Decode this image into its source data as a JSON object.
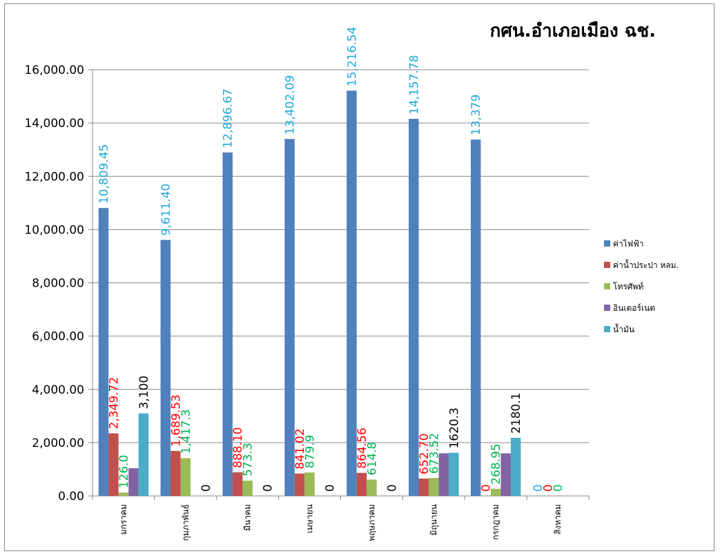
{
  "chart_data": {
    "type": "bar",
    "title": "กศน.อำเภอเมือง ฉช.",
    "xlabel": "",
    "ylabel": "",
    "ylim": [
      0,
      16000
    ],
    "yticks": [
      0,
      2000,
      4000,
      6000,
      8000,
      10000,
      12000,
      14000,
      16000
    ],
    "ytick_labels": [
      "0.00",
      "2,000.00",
      "4,000.00",
      "6,000.00",
      "8,000.00",
      "10,000.00",
      "12,000.00",
      "14,000.00",
      "16,000.00"
    ],
    "grid": true,
    "legend_position": "right",
    "categories": [
      "มกราคม",
      "กุมภาพันธ์",
      "มีนาคม",
      "เมษายน",
      "พฤษภาคม",
      "มิถุนายน",
      "กรกฎาคม",
      "สิงหาคม"
    ],
    "series": [
      {
        "name": "ค่าไฟฟ้า",
        "color": "#4F81BD",
        "label_color": "#1FA7D9",
        "values": [
          10809.45,
          9611.4,
          12896.67,
          13402.09,
          15216.54,
          14157.78,
          13379,
          0
        ],
        "labels": [
          "10,809.45",
          "9,611.40",
          "12,896.67",
          "13,402.09",
          "15,216.54",
          "14,157.78",
          "13,379",
          "0"
        ]
      },
      {
        "name": "ค่าน้ำประปา หลม.",
        "color": "#C0504D",
        "label_color": "#FF0000",
        "values": [
          2349.72,
          1689.53,
          888.1,
          841.02,
          864.56,
          652.7,
          0,
          0
        ],
        "labels": [
          "2,349.72",
          "1,689.53",
          "888.10",
          "841.02",
          "864.56",
          "652.70",
          "0",
          "0"
        ]
      },
      {
        "name": "โทรศัพท์",
        "color": "#9BBB59",
        "label_color": "#00B050",
        "values": [
          126.0,
          1417.3,
          573.3,
          879.9,
          614.8,
          673.52,
          268.95,
          0
        ],
        "labels": [
          "126.0",
          "1,417.3",
          "573.3",
          "879.9",
          "614.8",
          "673.52",
          "268.95",
          "0"
        ]
      },
      {
        "name": "อินเตอร์เนต",
        "color": "#8064A2",
        "label_color": "#000000",
        "values": [
          1040,
          0,
          0,
          0,
          0,
          1600,
          1600,
          0
        ],
        "labels": [
          "",
          "",
          "",
          "",
          "",
          "",
          "",
          ""
        ]
      },
      {
        "name": "น้ำมัน",
        "color": "#4BACC6",
        "label_color": "#000000",
        "values": [
          3100,
          0,
          0,
          0,
          0,
          1620.3,
          2180.1,
          null
        ],
        "labels": [
          "3,100",
          "0",
          "0",
          "0",
          "0",
          "1620.3",
          "2180.1",
          ""
        ]
      }
    ]
  }
}
